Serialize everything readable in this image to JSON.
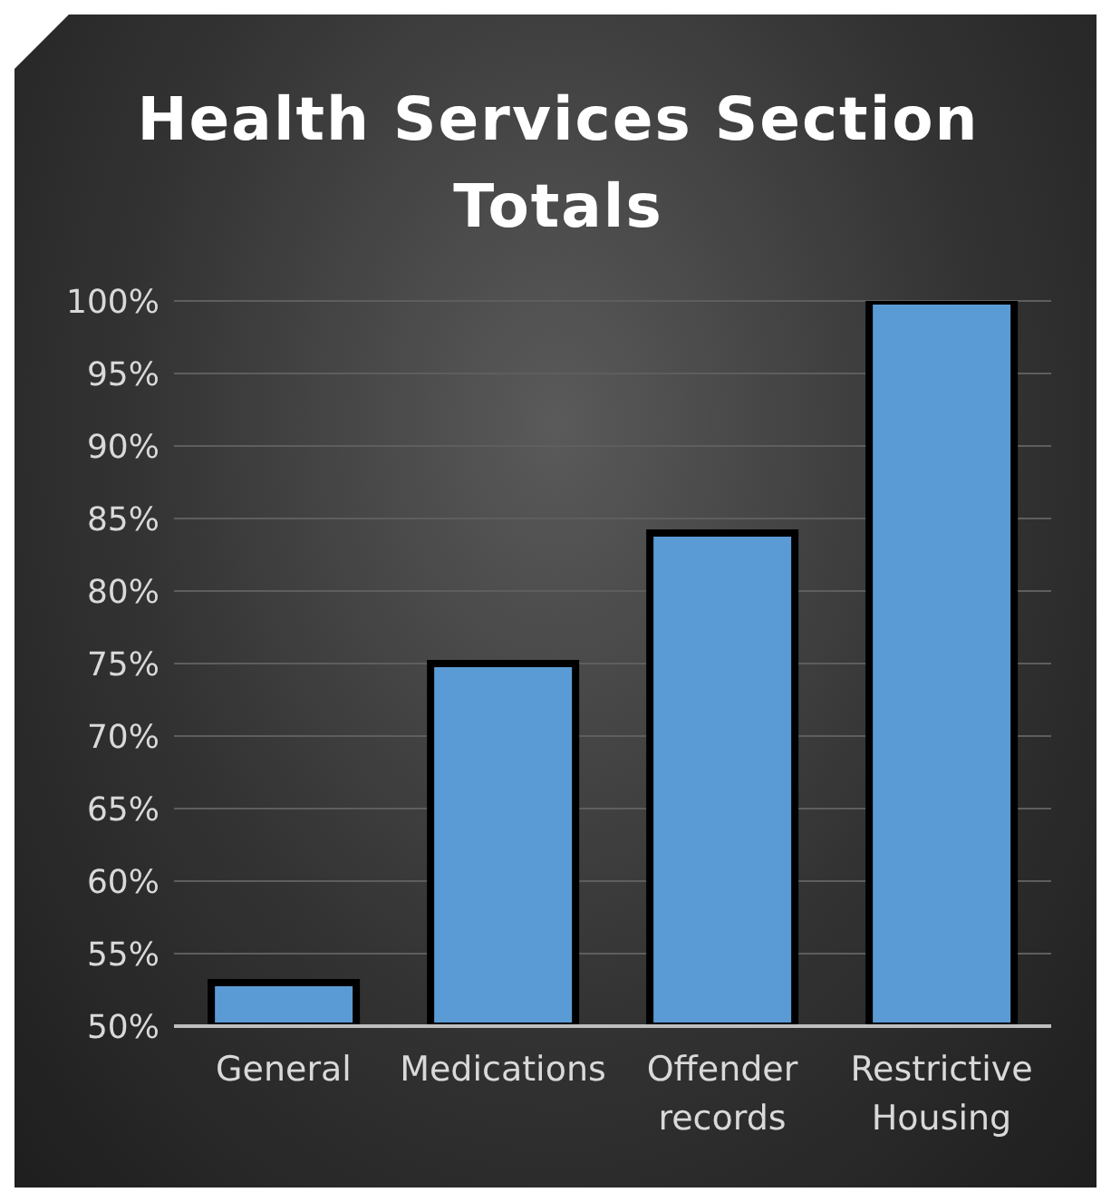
{
  "chart_data": {
    "type": "bar",
    "title": "Health Services Section Totals",
    "categories": [
      "General",
      "Medications",
      "Offender records",
      "Restrictive Housing"
    ],
    "values": [
      53,
      75,
      84,
      100
    ],
    "color": "#5b9bd5",
    "ylim": [
      50,
      100
    ],
    "yticks": [
      {
        "value": 50,
        "label": "50%"
      },
      {
        "value": 55,
        "label": "55%"
      },
      {
        "value": 60,
        "label": "60%"
      },
      {
        "value": 65,
        "label": "65%"
      },
      {
        "value": 70,
        "label": "70%"
      },
      {
        "value": 75,
        "label": "75%"
      },
      {
        "value": 80,
        "label": "80%"
      },
      {
        "value": 85,
        "label": "85%"
      },
      {
        "value": 90,
        "label": "90%"
      },
      {
        "value": 95,
        "label": "95%"
      },
      {
        "value": 100,
        "label": "100%"
      }
    ],
    "grid": "y",
    "legend": false
  }
}
